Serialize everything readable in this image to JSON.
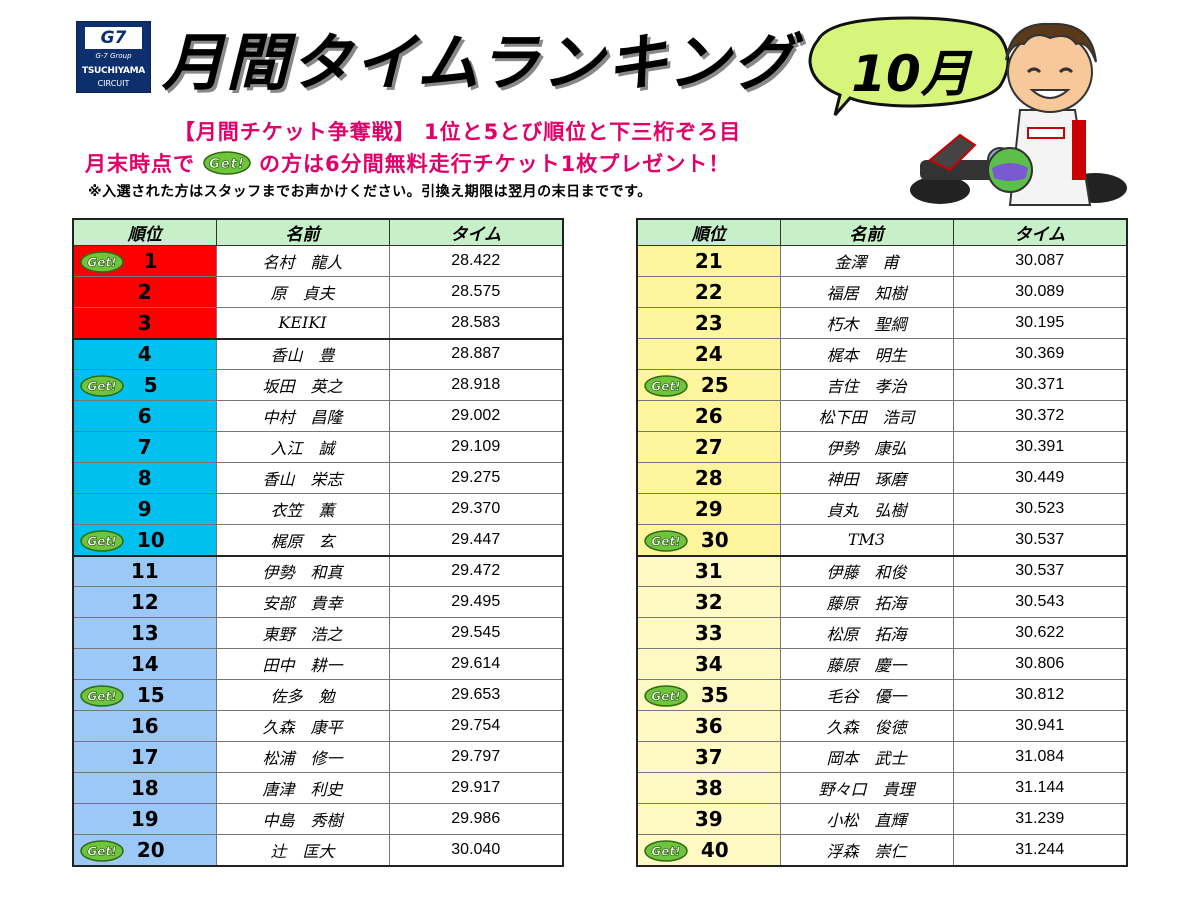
{
  "logo": {
    "brand": "G7",
    "group": "G-7 Group",
    "name": "TSUCHIYAMA",
    "sub": "CIRCUIT"
  },
  "header": {
    "title": "月間タイムランキング",
    "month": "10月"
  },
  "promo": {
    "line1": "【月間チケット争奪戦】 1位と5とび順位と下三桁ぞろ目",
    "line2_pre": "月末時点で",
    "line2_post": "の方は6分間無料走行チケット1枚プレゼント！",
    "note": "※入選された方はスタッフまでお声かけください。引換え期限は翌月の末日までです。",
    "badge": "Get!"
  },
  "columns": {
    "rank": "順位",
    "name": "名前",
    "time": "タイム"
  },
  "colors": {
    "top3": "#ff0000",
    "top10": "#00c0f0",
    "rest_left": "#9cc8f8",
    "right_top10": "#fff59c",
    "rest_right": "#fff9c4",
    "header": "#c8f0c8"
  },
  "left_rows": [
    {
      "rank": "1",
      "name": "名村　龍人",
      "time": "28.422",
      "get": true
    },
    {
      "rank": "2",
      "name": "原　貞夫",
      "time": "28.575",
      "get": false
    },
    {
      "rank": "3",
      "name": "KEIKI",
      "time": "28.583",
      "get": false
    },
    {
      "rank": "4",
      "name": "香山　豊",
      "time": "28.887",
      "get": false
    },
    {
      "rank": "5",
      "name": "坂田　英之",
      "time": "28.918",
      "get": true
    },
    {
      "rank": "6",
      "name": "中村　昌隆",
      "time": "29.002",
      "get": false
    },
    {
      "rank": "7",
      "name": "入江　誠",
      "time": "29.109",
      "get": false
    },
    {
      "rank": "8",
      "name": "香山　栄志",
      "time": "29.275",
      "get": false
    },
    {
      "rank": "9",
      "name": "衣笠　薫",
      "time": "29.370",
      "get": false
    },
    {
      "rank": "10",
      "name": "梶原　玄",
      "time": "29.447",
      "get": true
    },
    {
      "rank": "11",
      "name": "伊勢　和真",
      "time": "29.472",
      "get": false
    },
    {
      "rank": "12",
      "name": "安部　貴幸",
      "time": "29.495",
      "get": false
    },
    {
      "rank": "13",
      "name": "東野　浩之",
      "time": "29.545",
      "get": false
    },
    {
      "rank": "14",
      "name": "田中　耕一",
      "time": "29.614",
      "get": false
    },
    {
      "rank": "15",
      "name": "佐多　勉",
      "time": "29.653",
      "get": true
    },
    {
      "rank": "16",
      "name": "久森　康平",
      "time": "29.754",
      "get": false
    },
    {
      "rank": "17",
      "name": "松浦　修一",
      "time": "29.797",
      "get": false
    },
    {
      "rank": "18",
      "name": "唐津　利史",
      "time": "29.917",
      "get": false
    },
    {
      "rank": "19",
      "name": "中島　秀樹",
      "time": "29.986",
      "get": false
    },
    {
      "rank": "20",
      "name": "辻　匡大",
      "time": "30.040",
      "get": true
    }
  ],
  "right_rows": [
    {
      "rank": "21",
      "name": "金澤　甫",
      "time": "30.087",
      "get": false
    },
    {
      "rank": "22",
      "name": "福居　知樹",
      "time": "30.089",
      "get": false
    },
    {
      "rank": "23",
      "name": "朽木　聖綱",
      "time": "30.195",
      "get": false
    },
    {
      "rank": "24",
      "name": "梶本　明生",
      "time": "30.369",
      "get": false
    },
    {
      "rank": "25",
      "name": "吉住　孝治",
      "time": "30.371",
      "get": true
    },
    {
      "rank": "26",
      "name": "松下田　浩司",
      "time": "30.372",
      "get": false
    },
    {
      "rank": "27",
      "name": "伊勢　康弘",
      "time": "30.391",
      "get": false
    },
    {
      "rank": "28",
      "name": "神田　琢磨",
      "time": "30.449",
      "get": false
    },
    {
      "rank": "29",
      "name": "貞丸　弘樹",
      "time": "30.523",
      "get": false
    },
    {
      "rank": "30",
      "name": "TM3",
      "time": "30.537",
      "get": true
    },
    {
      "rank": "31",
      "name": "伊藤　和俊",
      "time": "30.537",
      "get": false
    },
    {
      "rank": "32",
      "name": "藤原　拓海",
      "time": "30.543",
      "get": false
    },
    {
      "rank": "33",
      "name": "松原　拓海",
      "time": "30.622",
      "get": false
    },
    {
      "rank": "34",
      "name": "藤原　慶一",
      "time": "30.806",
      "get": false
    },
    {
      "rank": "35",
      "name": "毛谷　優一",
      "time": "30.812",
      "get": true
    },
    {
      "rank": "36",
      "name": "久森　俊徳",
      "time": "30.941",
      "get": false
    },
    {
      "rank": "37",
      "name": "岡本　武士",
      "time": "31.084",
      "get": false
    },
    {
      "rank": "38",
      "name": "野々口　貴理",
      "time": "31.144",
      "get": false
    },
    {
      "rank": "39",
      "name": "小松　直輝",
      "time": "31.239",
      "get": false
    },
    {
      "rank": "40",
      "name": "浮森　崇仁",
      "time": "31.244",
      "get": true
    }
  ]
}
